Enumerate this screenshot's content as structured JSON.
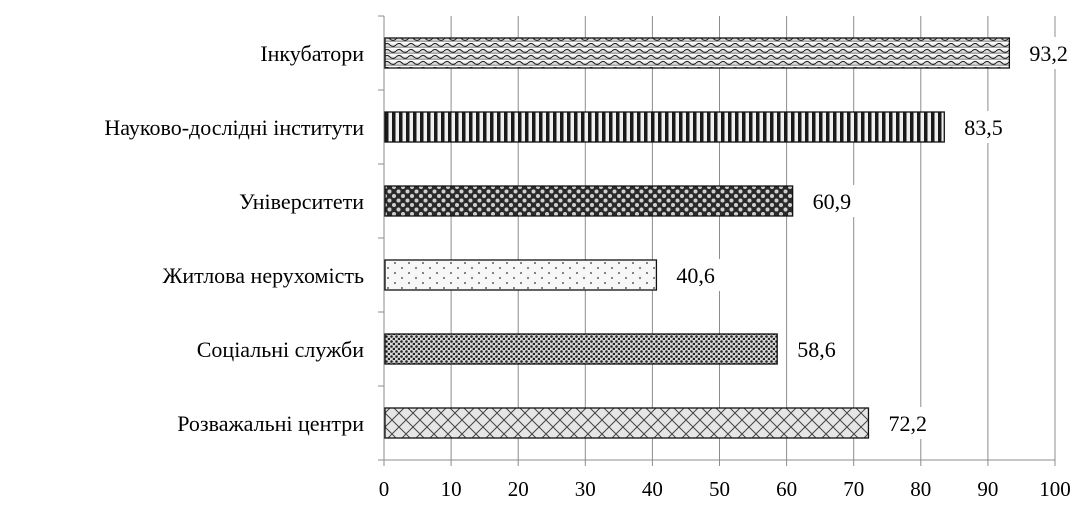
{
  "chart_data": {
    "type": "bar",
    "orientation": "horizontal",
    "categories": [
      "Інкубатори",
      "Науково-дослідні інститути",
      "Університети",
      "Житлова нерухомість",
      "Соціальні служби",
      "Розважальні центри"
    ],
    "values": [
      93.2,
      83.5,
      60.9,
      40.6,
      58.6,
      72.2
    ],
    "data_labels": [
      "93,2",
      "83,5",
      "60,9",
      "40,6",
      "58,6",
      "72,2"
    ],
    "title": "",
    "xlabel": "",
    "ylabel": "",
    "xlim": [
      0,
      100
    ],
    "x_ticks": [
      0,
      10,
      20,
      30,
      40,
      50,
      60,
      70,
      80,
      90,
      100
    ],
    "x_tick_labels": [
      "0",
      "10",
      "20",
      "30",
      "40",
      "50",
      "60",
      "70",
      "80",
      "90",
      "100"
    ],
    "grid": "vertical",
    "legend": "none",
    "bar_patterns": [
      "wave",
      "vertical-stripes",
      "dots-large",
      "dots-sparse",
      "dots-dense",
      "crosshatch"
    ]
  }
}
